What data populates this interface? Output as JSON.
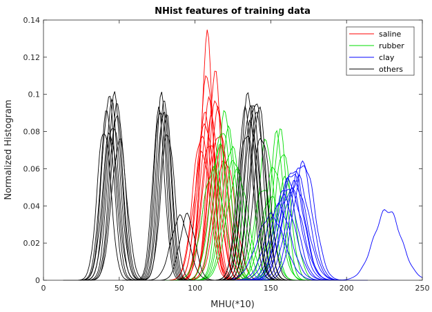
{
  "chart_data": {
    "type": "line",
    "title": "NHist features of training data",
    "xlabel": "MHU(*10)",
    "ylabel": "Normalized Histogram",
    "xlim": [
      0,
      250
    ],
    "ylim": [
      0,
      0.14
    ],
    "xticks": [
      0,
      50,
      100,
      150,
      200,
      250
    ],
    "xtick_labels": [
      "0",
      "50",
      "100",
      "150",
      "200",
      "250"
    ],
    "yticks": [
      0,
      0.02,
      0.04,
      0.06,
      0.08,
      0.1,
      0.12,
      0.14
    ],
    "ytick_labels": [
      "0",
      "0.02",
      "0.04",
      "0.06",
      "0.08",
      "0.1",
      "0.12",
      "0.14"
    ],
    "grid": false,
    "legend_position": "top-right",
    "series": [
      {
        "name": "saline",
        "color": "#ff0000",
        "peaks": [
          {
            "center": 104,
            "peak": 0.078,
            "width": 5.5
          },
          {
            "center": 105,
            "peak": 0.068,
            "width": 6.0
          },
          {
            "center": 106,
            "peak": 0.089,
            "width": 5.0
          },
          {
            "center": 107,
            "peak": 0.085,
            "width": 5.5
          },
          {
            "center": 108,
            "peak": 0.13,
            "width": 4.0
          },
          {
            "center": 108,
            "peak": 0.112,
            "width": 4.5
          },
          {
            "center": 109,
            "peak": 0.095,
            "width": 5.0
          },
          {
            "center": 110,
            "peak": 0.075,
            "width": 6.0
          },
          {
            "center": 111,
            "peak": 0.086,
            "width": 5.5
          },
          {
            "center": 113,
            "peak": 0.111,
            "width": 4.5
          },
          {
            "center": 114,
            "peak": 0.098,
            "width": 5.0
          },
          {
            "center": 115,
            "peak": 0.09,
            "width": 5.5
          },
          {
            "center": 116,
            "peak": 0.08,
            "width": 6.0
          },
          {
            "center": 118,
            "peak": 0.072,
            "width": 6.0
          },
          {
            "center": 112,
            "peak": 0.06,
            "width": 7.0
          },
          {
            "center": 120,
            "peak": 0.065,
            "width": 6.5
          }
        ]
      },
      {
        "name": "rubber",
        "color": "#00dd00",
        "peaks": [
          {
            "center": 112,
            "peak": 0.06,
            "width": 7.0
          },
          {
            "center": 116,
            "peak": 0.072,
            "width": 6.0
          },
          {
            "center": 118,
            "peak": 0.082,
            "width": 5.5
          },
          {
            "center": 120,
            "peak": 0.09,
            "width": 5.0
          },
          {
            "center": 122,
            "peak": 0.08,
            "width": 5.5
          },
          {
            "center": 124,
            "peak": 0.072,
            "width": 6.0
          },
          {
            "center": 126,
            "peak": 0.065,
            "width": 6.5
          },
          {
            "center": 128,
            "peak": 0.058,
            "width": 7.0
          },
          {
            "center": 147,
            "peak": 0.075,
            "width": 5.0
          },
          {
            "center": 152,
            "peak": 0.062,
            "width": 5.5
          },
          {
            "center": 154,
            "peak": 0.078,
            "width": 4.5
          },
          {
            "center": 156,
            "peak": 0.08,
            "width": 4.5
          },
          {
            "center": 158,
            "peak": 0.07,
            "width": 5.0
          },
          {
            "center": 160,
            "peak": 0.055,
            "width": 6.0
          },
          {
            "center": 145,
            "peak": 0.05,
            "width": 6.0
          },
          {
            "center": 150,
            "peak": 0.045,
            "width": 6.5
          }
        ]
      },
      {
        "name": "clay",
        "color": "#0000ff",
        "peaks": [
          {
            "center": 155,
            "peak": 0.04,
            "width": 8.0
          },
          {
            "center": 158,
            "peak": 0.045,
            "width": 8.0
          },
          {
            "center": 160,
            "peak": 0.05,
            "width": 7.5
          },
          {
            "center": 162,
            "peak": 0.054,
            "width": 7.5
          },
          {
            "center": 163,
            "peak": 0.048,
            "width": 8.0
          },
          {
            "center": 165,
            "peak": 0.06,
            "width": 7.0
          },
          {
            "center": 166,
            "peak": 0.052,
            "width": 8.0
          },
          {
            "center": 168,
            "peak": 0.055,
            "width": 7.5
          },
          {
            "center": 170,
            "peak": 0.063,
            "width": 7.0
          },
          {
            "center": 172,
            "peak": 0.063,
            "width": 7.0
          },
          {
            "center": 164,
            "peak": 0.058,
            "width": 7.5
          },
          {
            "center": 150,
            "peak": 0.035,
            "width": 9.0
          },
          {
            "center": 227,
            "peak": 0.038,
            "width": 9.0
          }
        ]
      },
      {
        "name": "others",
        "color": "#000000",
        "peaks": [
          {
            "center": 40,
            "peak": 0.082,
            "width": 4.5
          },
          {
            "center": 42,
            "peak": 0.09,
            "width": 4.5
          },
          {
            "center": 43,
            "peak": 0.098,
            "width": 4.5
          },
          {
            "center": 44,
            "peak": 0.08,
            "width": 5.0
          },
          {
            "center": 45,
            "peak": 0.094,
            "width": 4.5
          },
          {
            "center": 46,
            "peak": 0.085,
            "width": 5.0
          },
          {
            "center": 47,
            "peak": 0.098,
            "width": 4.5
          },
          {
            "center": 48,
            "peak": 0.09,
            "width": 4.5
          },
          {
            "center": 49,
            "peak": 0.094,
            "width": 4.5
          },
          {
            "center": 50,
            "peak": 0.075,
            "width": 5.0
          },
          {
            "center": 76,
            "peak": 0.09,
            "width": 4.0
          },
          {
            "center": 77,
            "peak": 0.094,
            "width": 4.0
          },
          {
            "center": 78,
            "peak": 0.098,
            "width": 4.0
          },
          {
            "center": 79,
            "peak": 0.092,
            "width": 4.0
          },
          {
            "center": 80,
            "peak": 0.096,
            "width": 4.0
          },
          {
            "center": 81,
            "peak": 0.088,
            "width": 4.0
          },
          {
            "center": 82,
            "peak": 0.08,
            "width": 4.5
          },
          {
            "center": 90,
            "peak": 0.034,
            "width": 6.0
          },
          {
            "center": 95,
            "peak": 0.035,
            "width": 5.0
          },
          {
            "center": 133,
            "peak": 0.09,
            "width": 5.0
          },
          {
            "center": 134,
            "peak": 0.08,
            "width": 5.5
          },
          {
            "center": 135,
            "peak": 0.098,
            "width": 5.0
          },
          {
            "center": 136,
            "peak": 0.094,
            "width": 5.0
          },
          {
            "center": 137,
            "peak": 0.085,
            "width": 5.5
          },
          {
            "center": 138,
            "peak": 0.092,
            "width": 5.0
          },
          {
            "center": 140,
            "peak": 0.098,
            "width": 5.0
          },
          {
            "center": 141,
            "peak": 0.088,
            "width": 5.5
          },
          {
            "center": 142,
            "peak": 0.093,
            "width": 5.0
          },
          {
            "center": 144,
            "peak": 0.078,
            "width": 5.5
          }
        ]
      }
    ]
  }
}
